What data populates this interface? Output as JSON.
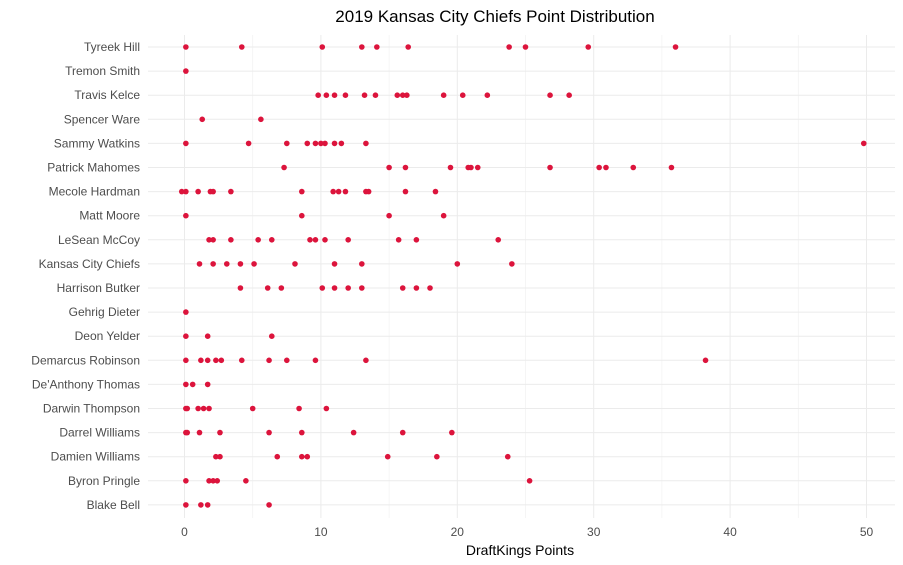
{
  "chart_data": {
    "type": "scatter",
    "title": "2019 Kansas City Chiefs Point Distribution",
    "xlabel": "DraftKings Points",
    "ylabel": "",
    "xlim": [
      -1.5,
      52
    ],
    "x_ticks": [
      0,
      10,
      20,
      30,
      40,
      50
    ],
    "grid": true,
    "legend": "none",
    "point_color": "#dc143c",
    "categories": [
      "Tyreek Hill",
      "Tremon Smith",
      "Travis Kelce",
      "Spencer Ware",
      "Sammy Watkins",
      "Patrick Mahomes",
      "Mecole Hardman",
      "Matt Moore",
      "LeSean McCoy",
      "Kansas City Chiefs",
      "Harrison Butker",
      "Gehrig Dieter",
      "Deon Yelder",
      "Demarcus Robinson",
      "De'Anthony Thomas",
      "Darwin Thompson",
      "Darrel Williams",
      "Damien Williams",
      "Byron Pringle",
      "Blake Bell"
    ],
    "series": [
      {
        "name": "Tyreek Hill",
        "values": [
          0.1,
          4.2,
          10.1,
          13.0,
          14.1,
          16.4,
          23.8,
          25.0,
          29.6,
          36.0
        ]
      },
      {
        "name": "Tremon Smith",
        "values": [
          0.1
        ]
      },
      {
        "name": "Travis Kelce",
        "values": [
          9.8,
          10.4,
          11.0,
          11.8,
          13.2,
          14.0,
          15.6,
          16.0,
          16.3,
          19.0,
          20.4,
          22.2,
          26.8,
          28.2
        ]
      },
      {
        "name": "Spencer Ware",
        "values": [
          1.3,
          5.6
        ]
      },
      {
        "name": "Sammy Watkins",
        "values": [
          0.1,
          4.7,
          7.5,
          9.0,
          9.6,
          10.0,
          10.3,
          11.0,
          11.5,
          13.3,
          49.8
        ]
      },
      {
        "name": "Patrick Mahomes",
        "values": [
          7.3,
          15.0,
          16.2,
          19.5,
          20.8,
          21.0,
          21.5,
          26.8,
          30.4,
          30.9,
          32.9,
          35.7
        ]
      },
      {
        "name": "Mecole Hardman",
        "values": [
          -0.2,
          0.1,
          1.0,
          1.9,
          2.1,
          3.4,
          8.6,
          10.9,
          11.3,
          11.8,
          13.3,
          13.5,
          16.2,
          18.4
        ]
      },
      {
        "name": "Matt Moore",
        "values": [
          0.1,
          8.6,
          15.0,
          19.0
        ]
      },
      {
        "name": "LeSean McCoy",
        "values": [
          1.8,
          2.1,
          3.4,
          5.4,
          6.4,
          9.2,
          9.6,
          10.3,
          12.0,
          15.7,
          17.0,
          23.0
        ]
      },
      {
        "name": "Kansas City Chiefs",
        "values": [
          1.1,
          2.1,
          3.1,
          4.1,
          5.1,
          8.1,
          11.0,
          13.0,
          20.0,
          24.0
        ]
      },
      {
        "name": "Harrison Butker",
        "values": [
          4.1,
          6.1,
          7.1,
          10.1,
          11.0,
          12.0,
          13.0,
          16.0,
          17.0,
          18.0
        ]
      },
      {
        "name": "Gehrig Dieter",
        "values": [
          0.1
        ]
      },
      {
        "name": "Deon Yelder",
        "values": [
          0.1,
          1.7,
          6.4
        ]
      },
      {
        "name": "Demarcus Robinson",
        "values": [
          0.1,
          1.2,
          1.7,
          2.3,
          2.7,
          4.2,
          6.2,
          7.5,
          9.6,
          13.3,
          38.2
        ]
      },
      {
        "name": "De'Anthony Thomas",
        "values": [
          0.1,
          0.6,
          1.7
        ]
      },
      {
        "name": "Darwin Thompson",
        "values": [
          0.1,
          0.2,
          1.0,
          1.4,
          1.8,
          5.0,
          8.4,
          10.4
        ]
      },
      {
        "name": "Darrel Williams",
        "values": [
          0.1,
          0.2,
          1.1,
          2.6,
          6.2,
          8.6,
          12.4,
          16.0,
          19.6
        ]
      },
      {
        "name": "Damien Williams",
        "values": [
          2.3,
          2.6,
          6.8,
          8.6,
          9.0,
          14.9,
          18.5,
          23.7
        ]
      },
      {
        "name": "Byron Pringle",
        "values": [
          0.1,
          1.8,
          2.1,
          2.4,
          4.5,
          25.3
        ]
      },
      {
        "name": "Blake Bell",
        "values": [
          0.1,
          1.2,
          1.7,
          6.2
        ]
      }
    ]
  }
}
